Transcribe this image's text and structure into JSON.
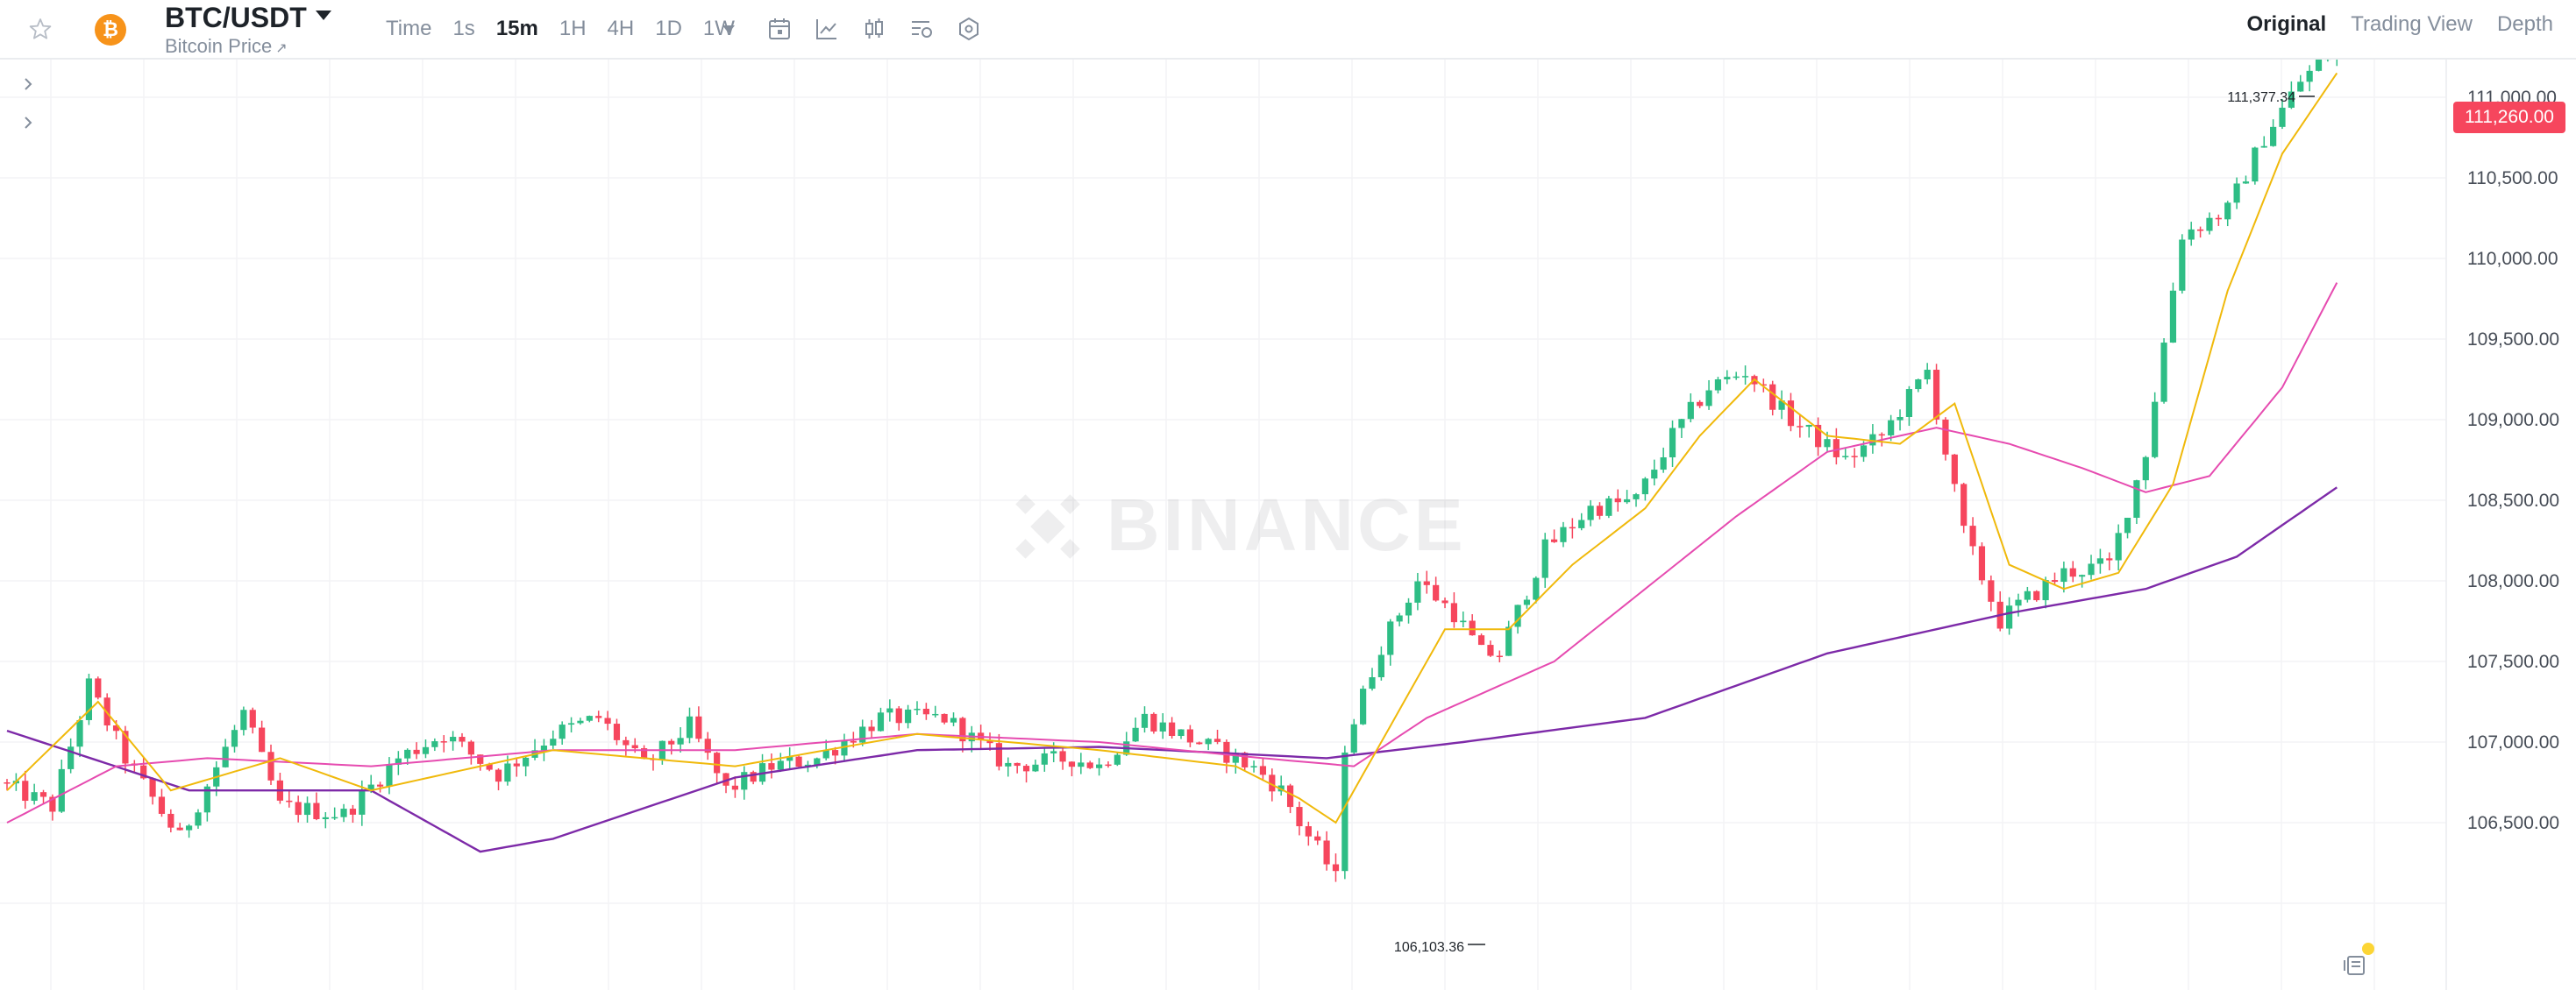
{
  "header": {
    "pair": "BTC/USDT",
    "subtitle": "Bitcoin Price",
    "subtitle_ext": "↗",
    "coin_symbol": "₿",
    "intervals": [
      "Time",
      "1s",
      "15m",
      "1H",
      "4H",
      "1D",
      "1W"
    ],
    "active_interval": "15m",
    "views": [
      "Original",
      "Trading View",
      "Depth"
    ],
    "active_view": "Original"
  },
  "watermark": "BINANCE",
  "current_price": "111,260.00",
  "colors": {
    "up": "#2ebd85",
    "down": "#f6465d",
    "ma_fast": "#f0b90b",
    "ma_mid": "#e64bb0",
    "ma_slow": "#7d2aa8",
    "badge": "#f6465d"
  },
  "chart_data": {
    "type": "candlestick",
    "y_ticks": [
      "106,500.00",
      "107,000.00",
      "107,500.00",
      "108,000.00",
      "108,500.00",
      "109,000.00",
      "109,500.00",
      "110,000.00",
      "110,500.00",
      "111,000.00"
    ],
    "ylim": [
      106000,
      111400
    ],
    "high_label": "111,377.34",
    "low_label": "106,103.36",
    "anchors": [
      [
        0,
        106750
      ],
      [
        6,
        106600
      ],
      [
        10,
        107350
      ],
      [
        14,
        106900
      ],
      [
        20,
        106400
      ],
      [
        27,
        107180
      ],
      [
        31,
        106600
      ],
      [
        38,
        106550
      ],
      [
        44,
        106900
      ],
      [
        49,
        107050
      ],
      [
        55,
        106800
      ],
      [
        61,
        107050
      ],
      [
        66,
        107150
      ],
      [
        71,
        106850
      ],
      [
        76,
        107100
      ],
      [
        80,
        106700
      ],
      [
        85,
        106850
      ],
      [
        90,
        106900
      ],
      [
        97,
        107150
      ],
      [
        104,
        107150
      ],
      [
        111,
        106850
      ],
      [
        118,
        106900
      ],
      [
        121,
        106850
      ],
      [
        126,
        107150
      ],
      [
        131,
        107020
      ],
      [
        136,
        106900
      ],
      [
        139,
        106800
      ],
      [
        141,
        106700
      ],
      [
        143,
        106500
      ],
      [
        146,
        106250
      ],
      [
        147,
        106150
      ],
      [
        148,
        106980
      ],
      [
        152,
        107600
      ],
      [
        156,
        108000
      ],
      [
        160,
        107800
      ],
      [
        163,
        107550
      ],
      [
        165,
        107550
      ],
      [
        170,
        108200
      ],
      [
        175,
        108450
      ],
      [
        180,
        108500
      ],
      [
        184,
        108900
      ],
      [
        188,
        109200
      ],
      [
        192,
        109300
      ],
      [
        197,
        109000
      ],
      [
        203,
        108750
      ],
      [
        207,
        108900
      ],
      [
        212,
        109300
      ],
      [
        216,
        108300
      ],
      [
        220,
        107750
      ],
      [
        222,
        107850
      ],
      [
        227,
        108050
      ],
      [
        232,
        108100
      ],
      [
        236,
        108800
      ],
      [
        240,
        110150
      ],
      [
        245,
        110300
      ],
      [
        249,
        110750
      ],
      [
        253,
        111100
      ],
      [
        256,
        111260
      ]
    ],
    "ma_fast": [
      [
        0,
        106700
      ],
      [
        10,
        107250
      ],
      [
        18,
        106700
      ],
      [
        30,
        106900
      ],
      [
        40,
        106700
      ],
      [
        60,
        106950
      ],
      [
        80,
        106850
      ],
      [
        100,
        107050
      ],
      [
        120,
        106950
      ],
      [
        135,
        106850
      ],
      [
        142,
        106650
      ],
      [
        146,
        106500
      ],
      [
        150,
        106900
      ],
      [
        158,
        107700
      ],
      [
        165,
        107700
      ],
      [
        172,
        108100
      ],
      [
        180,
        108450
      ],
      [
        186,
        108900
      ],
      [
        192,
        109250
      ],
      [
        200,
        108900
      ],
      [
        208,
        108850
      ],
      [
        214,
        109100
      ],
      [
        220,
        108100
      ],
      [
        226,
        107950
      ],
      [
        232,
        108050
      ],
      [
        238,
        108600
      ],
      [
        244,
        109800
      ],
      [
        250,
        110650
      ],
      [
        256,
        111150
      ]
    ],
    "ma_mid": [
      [
        0,
        106500
      ],
      [
        12,
        106850
      ],
      [
        22,
        106900
      ],
      [
        40,
        106850
      ],
      [
        60,
        106950
      ],
      [
        80,
        106950
      ],
      [
        100,
        107050
      ],
      [
        120,
        107000
      ],
      [
        138,
        106900
      ],
      [
        148,
        106850
      ],
      [
        156,
        107150
      ],
      [
        170,
        107500
      ],
      [
        180,
        107950
      ],
      [
        190,
        108400
      ],
      [
        200,
        108800
      ],
      [
        212,
        108950
      ],
      [
        220,
        108850
      ],
      [
        228,
        108700
      ],
      [
        235,
        108550
      ],
      [
        242,
        108650
      ],
      [
        250,
        109200
      ],
      [
        256,
        109850
      ]
    ],
    "ma_slow": [
      [
        0,
        107070
      ],
      [
        20,
        106700
      ],
      [
        40,
        106700
      ],
      [
        52,
        106320
      ],
      [
        60,
        106400
      ],
      [
        80,
        106780
      ],
      [
        100,
        106950
      ],
      [
        120,
        106970
      ],
      [
        145,
        106900
      ],
      [
        160,
        107000
      ],
      [
        180,
        107150
      ],
      [
        200,
        107550
      ],
      [
        220,
        107800
      ],
      [
        235,
        107950
      ],
      [
        245,
        108150
      ],
      [
        256,
        108580
      ]
    ]
  }
}
